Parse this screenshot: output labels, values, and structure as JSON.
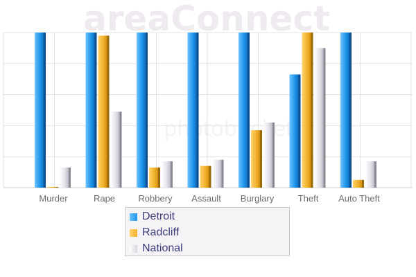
{
  "watermark": {
    "brand": "areaConnect",
    "photo_site": "photobucket"
  },
  "chart_data": {
    "type": "bar",
    "categories": [
      "Murder",
      "Rape",
      "Robbery",
      "Assault",
      "Burglary",
      "Theft",
      "Auto Theft"
    ],
    "series": [
      {
        "name": "Detroit",
        "color": "#2f9ff0",
        "values": [
          100,
          100,
          100,
          100,
          100,
          73,
          100
        ]
      },
      {
        "name": "Radcliff",
        "color": "#f4b429",
        "values": [
          0.5,
          98,
          13,
          14,
          37,
          100,
          5
        ]
      },
      {
        "name": "National",
        "color": "#e0e0e6",
        "values": [
          13,
          49,
          17,
          18,
          42,
          90,
          17
        ]
      }
    ],
    "ylim": [
      0,
      100
    ],
    "grid": true,
    "legend_position": "bottom"
  }
}
